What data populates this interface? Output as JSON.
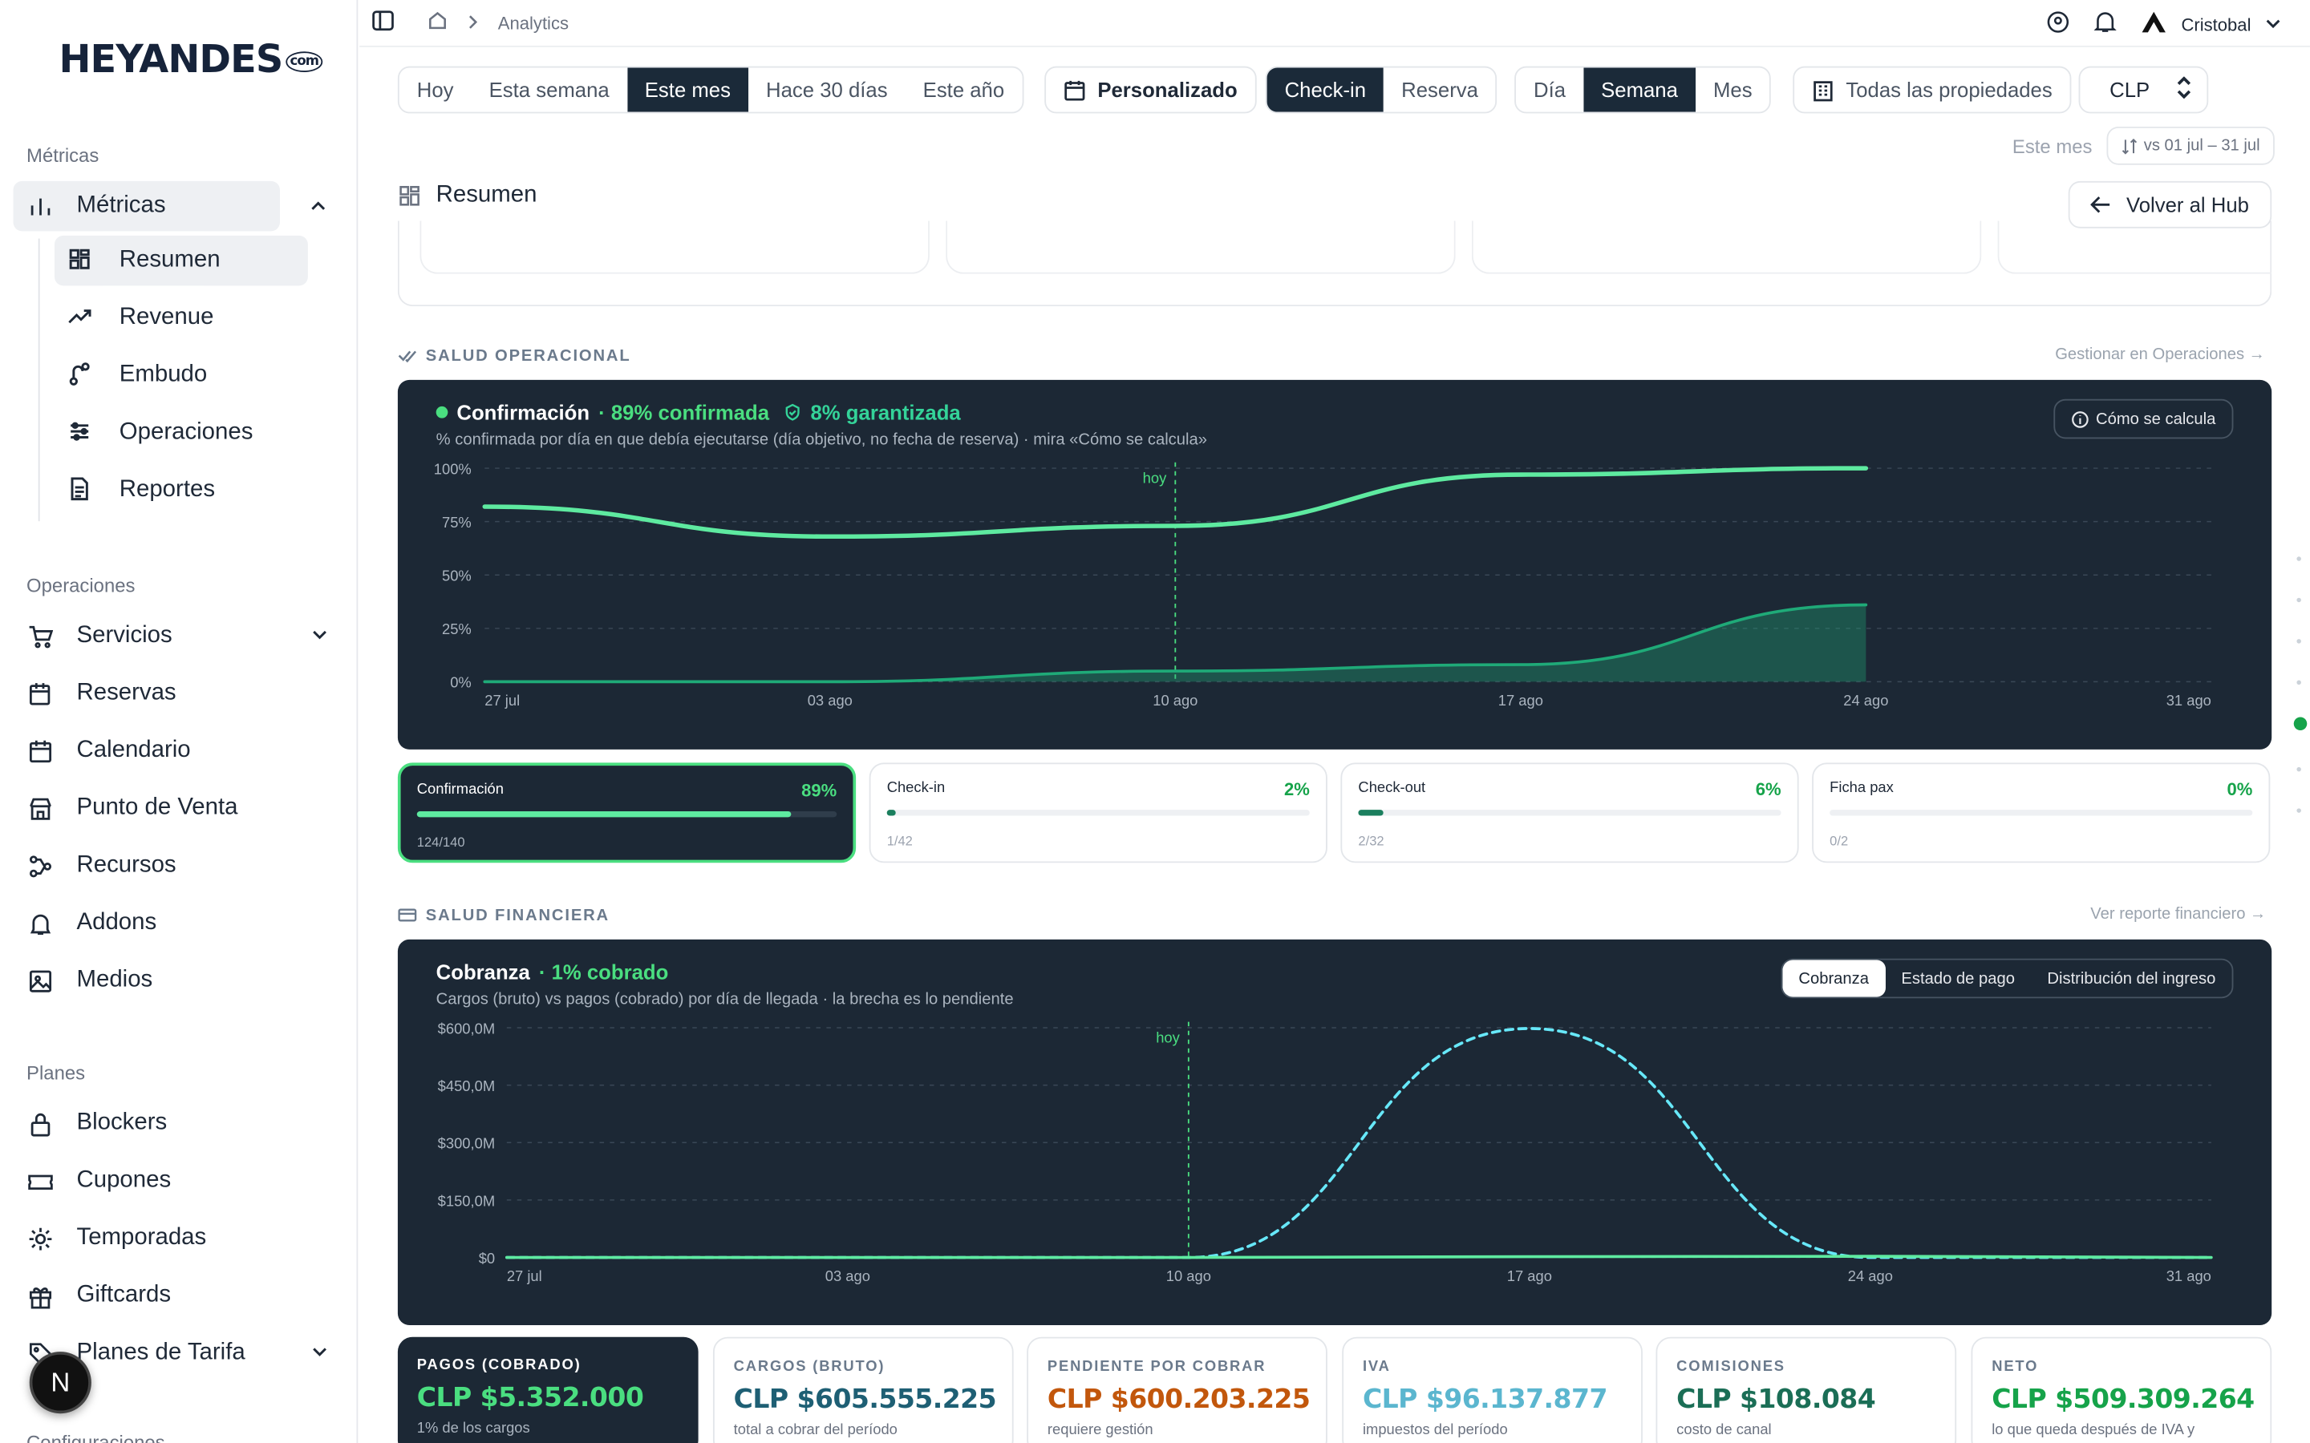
{
  "brand": {
    "logo": "HEYANDES",
    "logo_suffix": "com"
  },
  "sidebar": {
    "sec_metricas": "Métricas",
    "metricas": "Métricas",
    "sub": [
      "Resumen",
      "Revenue",
      "Embudo",
      "Operaciones",
      "Reportes"
    ],
    "sec_operaciones": "Operaciones",
    "ops": [
      "Servicios",
      "Reservas",
      "Calendario",
      "Punto de Venta",
      "Recursos",
      "Addons",
      "Medios"
    ],
    "sec_planes": "Planes",
    "planes": [
      "Blockers",
      "Cupones",
      "Temporadas",
      "Giftcards",
      "Planes de Tarifa"
    ],
    "sec_config": "Configuraciones",
    "avatar": "N"
  },
  "topbar": {
    "breadcrumb": "Analytics",
    "user": "Cristobal"
  },
  "filters": {
    "period": [
      "Hoy",
      "Esta semana",
      "Este mes",
      "Hace 30 días",
      "Este año"
    ],
    "period_active": "Este mes",
    "custom": "Personalizado",
    "basis": [
      "Check-in",
      "Reserva"
    ],
    "grain": [
      "Día",
      "Semana",
      "Mes"
    ],
    "properties": "Todas las propiedades",
    "currency": "CLP",
    "compare_label": "Este mes",
    "compare_range": "vs 01 jul – 31 jul"
  },
  "resumen": {
    "title": "Resumen",
    "back": "Volver al Hub"
  },
  "ops_section": {
    "label": "SALUD OPERACIONAL",
    "link": "Gestionar en Operaciones →"
  },
  "confirm_panel": {
    "title": "Confirmación",
    "confirmed": "· 89% confirmada",
    "guaranteed": "8% garantizada",
    "subtitle": "% confirmada por día en que debía ejecutarse (día objetivo, no fecha de reserva) · mira «Cómo se calcula»",
    "calc_btn": "Cómo se calcula",
    "hoy": "hoy"
  },
  "ops_cards": [
    {
      "name": "Confirmación",
      "pct": "89%",
      "count": "124/140"
    },
    {
      "name": "Check-in",
      "pct": "2%",
      "count": "1/42"
    },
    {
      "name": "Check-out",
      "pct": "6%",
      "count": "2/32"
    },
    {
      "name": "Ficha pax",
      "pct": "0%",
      "count": "0/2"
    }
  ],
  "fin_section": {
    "label": "SALUD FINANCIERA",
    "link": "Ver reporte financiero →"
  },
  "cobranza_panel": {
    "title": "Cobranza",
    "collected": "· 1% cobrado",
    "subtitle": "Cargos (bruto) vs pagos (cobrado) por día de llegada · la brecha es lo pendiente",
    "tabs": [
      "Cobranza",
      "Estado de pago",
      "Distribución del ingreso"
    ],
    "hoy": "hoy"
  },
  "kpis": [
    {
      "label": "PAGOS (COBRADO)",
      "value": "CLP $5.352.000",
      "sub": "1% de los cargos",
      "color": "#4ade80"
    },
    {
      "label": "CARGOS (BRUTO)",
      "value": "CLP $605.555.225",
      "sub": "total a cobrar del período",
      "color": "#1e5f74"
    },
    {
      "label": "PENDIENTE POR COBRAR",
      "value": "CLP $600.203.225",
      "sub": "requiere gestión",
      "color": "#c2570c"
    },
    {
      "label": "IVA",
      "value": "CLP $96.137.877",
      "sub": "impuestos del período",
      "color": "#5bb6cf"
    },
    {
      "label": "COMISIONES",
      "value": "CLP $108.084",
      "sub": "costo de canal",
      "color": "#1b6e56"
    },
    {
      "label": "NETO",
      "value": "CLP $509.309.264",
      "sub": "lo que queda después de IVA y",
      "color": "#16a34a"
    }
  ],
  "chart_data": [
    {
      "type": "line",
      "x": [
        "27 jul",
        "03 ago",
        "10 ago",
        "17 ago",
        "24 ago",
        "31 ago"
      ],
      "ylim": [
        0,
        100
      ],
      "yticks": [
        "0%",
        "25%",
        "50%",
        "75%",
        "100%"
      ],
      "series": [
        {
          "values": [
            82,
            68,
            73,
            97,
            100,
            null
          ],
          "color": "#5eeaa0"
        },
        {
          "values": [
            0,
            0,
            5,
            8,
            36,
            null
          ],
          "color": "#1faa78"
        }
      ]
    },
    {
      "type": "line",
      "x": [
        "27 jul",
        "03 ago",
        "10 ago",
        "17 ago",
        "24 ago",
        "31 ago"
      ],
      "ylim": [
        0,
        600
      ],
      "yticks": [
        "$0",
        "$150,0M",
        "$300,0M",
        "$450,0M",
        "$600,0M"
      ],
      "series": [
        {
          "values": [
            0,
            0,
            0,
            598,
            0,
            0
          ],
          "color": "#67e8f9",
          "dashed": true
        },
        {
          "values": [
            0,
            0,
            0,
            2,
            3,
            0
          ],
          "color": "#5eeaa0"
        }
      ]
    }
  ]
}
